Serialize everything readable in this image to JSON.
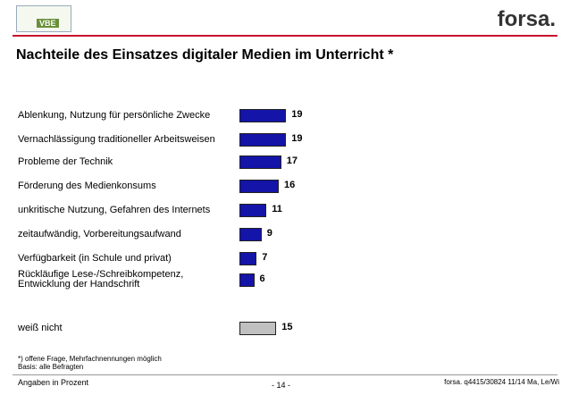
{
  "header": {
    "logo_left": "VBE",
    "logo_right": "forsa."
  },
  "chart_data": {
    "type": "bar",
    "orientation": "horizontal",
    "title": "Nachteile des Einsatzes digitaler Medien im Unterricht *",
    "categories": [
      "Ablenkung, Nutzung für persönliche Zwecke",
      "Vernachlässigung traditioneller Arbeitsweisen",
      "Probleme der Technik",
      "Förderung des Medienkonsums",
      "unkritische Nutzung, Gefahren des Internets",
      "zeitaufwändig, Vorbereitungsaufwand",
      "Verfügbarkeit (in Schule und privat)",
      "Rückläufige Lese-/Schreibkompetenz,\nEntwicklung der Handschrift",
      "weiß nicht"
    ],
    "values": [
      19,
      19,
      17,
      16,
      11,
      9,
      7,
      6,
      15
    ],
    "colors": [
      "#1414a8",
      "#1414a8",
      "#1414a8",
      "#1414a8",
      "#1414a8",
      "#1414a8",
      "#1414a8",
      "#1414a8",
      "#c0c0c0"
    ],
    "notes": [
      "*) offene Frage, Mehrfachnennungen möglich",
      "Basis: alle Befragten"
    ]
  },
  "footer": {
    "left": "Angaben in Prozent",
    "center": "- 14 -",
    "right": "forsa. q4415/30824 11/14 Ma, Le/Wi"
  }
}
